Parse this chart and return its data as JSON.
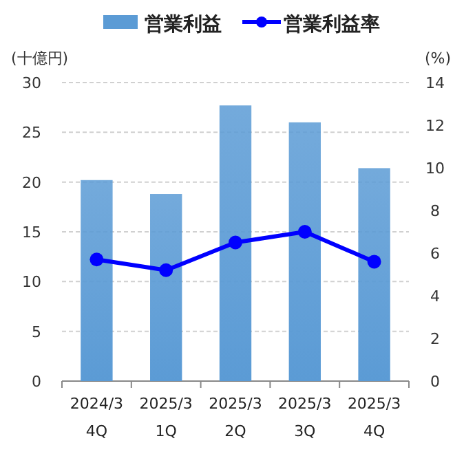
{
  "chart_data": {
    "type": "bar",
    "categories": [
      "2024/3\n4Q",
      "2025/3\n1Q",
      "2025/3\n2Q",
      "2025/3\n3Q",
      "2025/3\n4Q"
    ],
    "series": [
      {
        "name": "営業利益",
        "color": "#5b9bd5",
        "values": [
          20.2,
          18.8,
          27.7,
          26.0,
          21.4
        ]
      },
      {
        "name": "営業利益率",
        "type": "line",
        "axis": "y2",
        "color": "#0000ff",
        "marker": "circle",
        "values": [
          5.7,
          5.2,
          6.5,
          7.0,
          5.6
        ]
      }
    ],
    "ylabel": "(十億円)",
    "y2label": "(%)",
    "ylim": [
      0,
      30
    ],
    "yticks": [
      0,
      5,
      10,
      15,
      20,
      25,
      30
    ],
    "y2lim": [
      0,
      14
    ],
    "y2ticks": [
      0,
      2,
      4,
      6,
      8,
      10,
      12,
      14
    ],
    "grid": "y",
    "legend": "top"
  }
}
